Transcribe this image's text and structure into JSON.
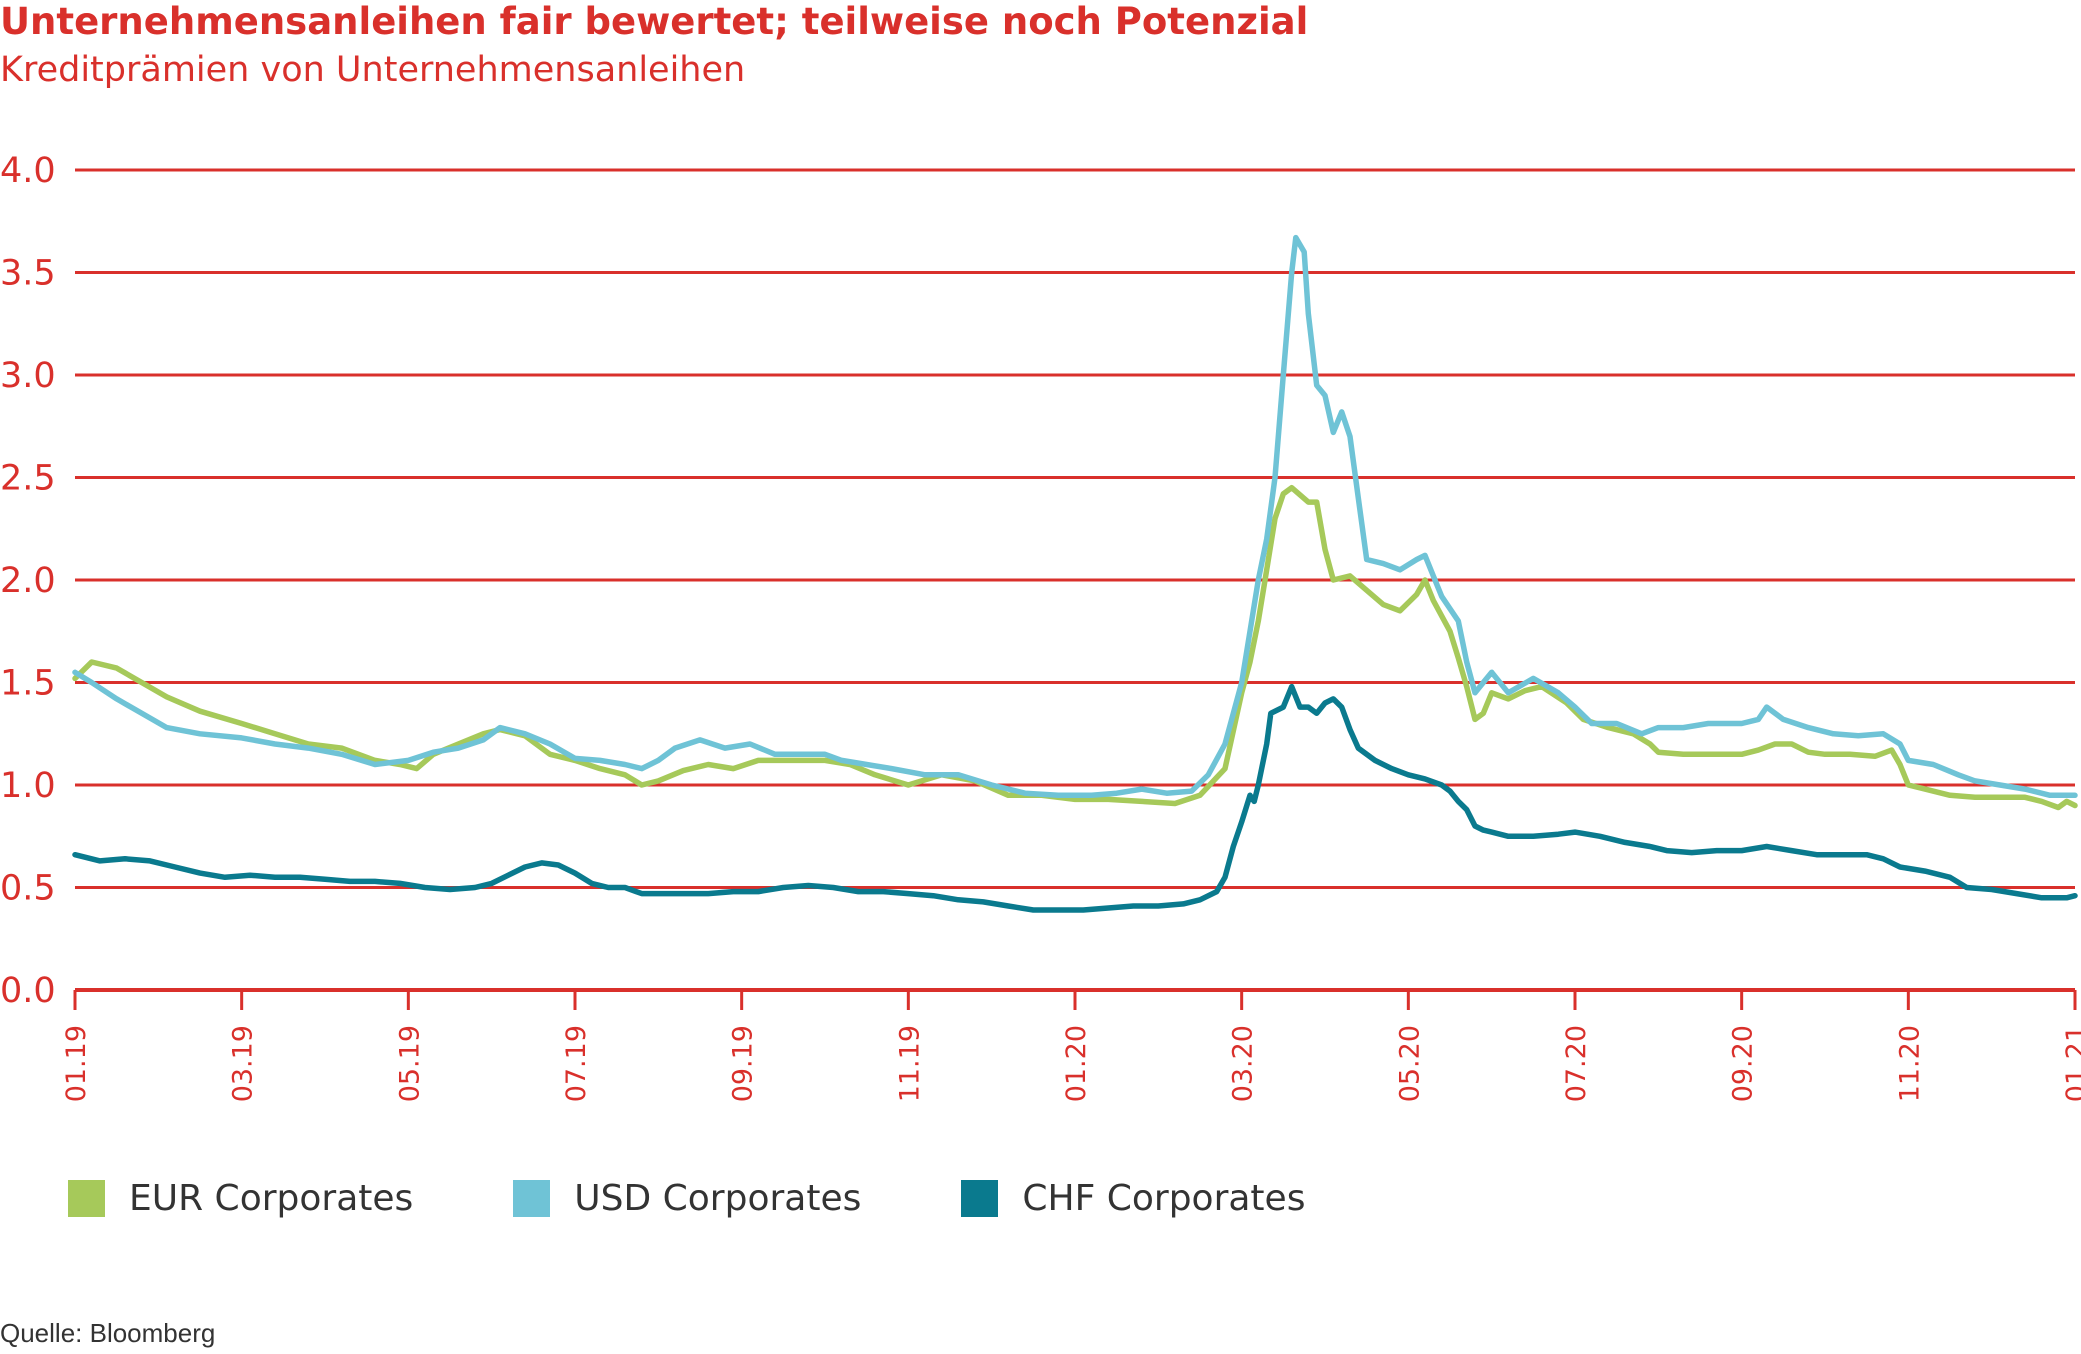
{
  "chart_data": {
    "type": "line",
    "title": "Unternehmensanleihen fair bewertet; teilweise noch Potenzial",
    "subtitle": "Kreditprämien von Unternehmensanleihen",
    "source": "Quelle: Bloomberg",
    "ylim": [
      0,
      4
    ],
    "yticks": [
      "0.0",
      "0.5",
      "1.0",
      "1.5",
      "2.0",
      "2.5",
      "3.0",
      "3.5",
      "4.0"
    ],
    "xlim": [
      0,
      24
    ],
    "xticks": [
      {
        "x": 0,
        "label": "01.19"
      },
      {
        "x": 2,
        "label": "03.19"
      },
      {
        "x": 4,
        "label": "05.19"
      },
      {
        "x": 6,
        "label": "07.19"
      },
      {
        "x": 8,
        "label": "09.19"
      },
      {
        "x": 10,
        "label": "11.19"
      },
      {
        "x": 12,
        "label": "01.20"
      },
      {
        "x": 14,
        "label": "03.20"
      },
      {
        "x": 16,
        "label": "05.20"
      },
      {
        "x": 18,
        "label": "07.20"
      },
      {
        "x": 20,
        "label": "09.20"
      },
      {
        "x": 22,
        "label": "11.20"
      },
      {
        "x": 24,
        "label": "01.21"
      }
    ],
    "grid": true,
    "legend_position": "bottom-left",
    "colors": {
      "grid": "#d9302b",
      "axis": "#d9302b"
    },
    "series": [
      {
        "name": "EUR Corporates",
        "color": "#a6c95a",
        "points": [
          [
            0,
            1.52
          ],
          [
            0.2,
            1.6
          ],
          [
            0.5,
            1.57
          ],
          [
            0.8,
            1.5
          ],
          [
            1.1,
            1.43
          ],
          [
            1.5,
            1.36
          ],
          [
            2,
            1.3
          ],
          [
            2.4,
            1.25
          ],
          [
            2.8,
            1.2
          ],
          [
            3.2,
            1.18
          ],
          [
            3.6,
            1.12
          ],
          [
            3.9,
            1.1
          ],
          [
            4.1,
            1.08
          ],
          [
            4.3,
            1.15
          ],
          [
            4.6,
            1.2
          ],
          [
            4.9,
            1.25
          ],
          [
            5.1,
            1.27
          ],
          [
            5.4,
            1.24
          ],
          [
            5.7,
            1.15
          ],
          [
            6.0,
            1.12
          ],
          [
            6.3,
            1.08
          ],
          [
            6.6,
            1.05
          ],
          [
            6.8,
            1.0
          ],
          [
            7.0,
            1.02
          ],
          [
            7.3,
            1.07
          ],
          [
            7.6,
            1.1
          ],
          [
            7.9,
            1.08
          ],
          [
            8.2,
            1.12
          ],
          [
            8.6,
            1.12
          ],
          [
            9.0,
            1.12
          ],
          [
            9.3,
            1.1
          ],
          [
            9.6,
            1.05
          ],
          [
            10.0,
            1.0
          ],
          [
            10.4,
            1.05
          ],
          [
            10.8,
            1.02
          ],
          [
            11.2,
            0.95
          ],
          [
            11.6,
            0.95
          ],
          [
            12.0,
            0.93
          ],
          [
            12.4,
            0.93
          ],
          [
            12.8,
            0.92
          ],
          [
            13.2,
            0.91
          ],
          [
            13.5,
            0.95
          ],
          [
            13.8,
            1.08
          ],
          [
            14.0,
            1.45
          ],
          [
            14.1,
            1.6
          ],
          [
            14.2,
            1.8
          ],
          [
            14.3,
            2.05
          ],
          [
            14.4,
            2.3
          ],
          [
            14.5,
            2.42
          ],
          [
            14.6,
            2.45
          ],
          [
            14.8,
            2.38
          ],
          [
            14.9,
            2.38
          ],
          [
            15.0,
            2.15
          ],
          [
            15.1,
            2.0
          ],
          [
            15.3,
            2.02
          ],
          [
            15.5,
            1.95
          ],
          [
            15.7,
            1.88
          ],
          [
            15.9,
            1.85
          ],
          [
            16.1,
            1.93
          ],
          [
            16.2,
            2.0
          ],
          [
            16.3,
            1.9
          ],
          [
            16.5,
            1.75
          ],
          [
            16.6,
            1.62
          ],
          [
            16.7,
            1.48
          ],
          [
            16.8,
            1.32
          ],
          [
            16.9,
            1.35
          ],
          [
            17.0,
            1.45
          ],
          [
            17.2,
            1.42
          ],
          [
            17.4,
            1.46
          ],
          [
            17.6,
            1.48
          ],
          [
            17.9,
            1.4
          ],
          [
            18.1,
            1.32
          ],
          [
            18.4,
            1.28
          ],
          [
            18.7,
            1.25
          ],
          [
            18.9,
            1.2
          ],
          [
            19.0,
            1.16
          ],
          [
            19.3,
            1.15
          ],
          [
            19.7,
            1.15
          ],
          [
            20.0,
            1.15
          ],
          [
            20.2,
            1.17
          ],
          [
            20.4,
            1.2
          ],
          [
            20.6,
            1.2
          ],
          [
            20.8,
            1.16
          ],
          [
            21.0,
            1.15
          ],
          [
            21.3,
            1.15
          ],
          [
            21.6,
            1.14
          ],
          [
            21.8,
            1.17
          ],
          [
            21.9,
            1.1
          ],
          [
            22.0,
            1.0
          ],
          [
            22.2,
            0.98
          ],
          [
            22.5,
            0.95
          ],
          [
            22.8,
            0.94
          ],
          [
            23.1,
            0.94
          ],
          [
            23.4,
            0.94
          ],
          [
            23.6,
            0.92
          ],
          [
            23.8,
            0.89
          ],
          [
            23.9,
            0.92
          ],
          [
            24.0,
            0.9
          ]
        ]
      },
      {
        "name": "USD Corporates",
        "color": "#6fc3d6",
        "points": [
          [
            0,
            1.55
          ],
          [
            0.2,
            1.5
          ],
          [
            0.5,
            1.42
          ],
          [
            0.8,
            1.35
          ],
          [
            1.1,
            1.28
          ],
          [
            1.5,
            1.25
          ],
          [
            2,
            1.23
          ],
          [
            2.4,
            1.2
          ],
          [
            2.8,
            1.18
          ],
          [
            3.2,
            1.15
          ],
          [
            3.6,
            1.1
          ],
          [
            4.0,
            1.12
          ],
          [
            4.3,
            1.16
          ],
          [
            4.6,
            1.18
          ],
          [
            4.9,
            1.22
          ],
          [
            5.1,
            1.28
          ],
          [
            5.4,
            1.25
          ],
          [
            5.7,
            1.2
          ],
          [
            6.0,
            1.13
          ],
          [
            6.3,
            1.12
          ],
          [
            6.6,
            1.1
          ],
          [
            6.8,
            1.08
          ],
          [
            7.0,
            1.12
          ],
          [
            7.2,
            1.18
          ],
          [
            7.5,
            1.22
          ],
          [
            7.8,
            1.18
          ],
          [
            8.1,
            1.2
          ],
          [
            8.4,
            1.15
          ],
          [
            8.7,
            1.15
          ],
          [
            9.0,
            1.15
          ],
          [
            9.2,
            1.12
          ],
          [
            9.5,
            1.1
          ],
          [
            9.8,
            1.08
          ],
          [
            10.2,
            1.05
          ],
          [
            10.6,
            1.05
          ],
          [
            11.0,
            1.0
          ],
          [
            11.4,
            0.96
          ],
          [
            11.8,
            0.95
          ],
          [
            12.2,
            0.95
          ],
          [
            12.5,
            0.96
          ],
          [
            12.8,
            0.98
          ],
          [
            13.1,
            0.96
          ],
          [
            13.4,
            0.97
          ],
          [
            13.6,
            1.05
          ],
          [
            13.8,
            1.2
          ],
          [
            14.0,
            1.5
          ],
          [
            14.1,
            1.75
          ],
          [
            14.2,
            2.0
          ],
          [
            14.3,
            2.2
          ],
          [
            14.4,
            2.5
          ],
          [
            14.5,
            3.0
          ],
          [
            14.6,
            3.5
          ],
          [
            14.65,
            3.67
          ],
          [
            14.75,
            3.6
          ],
          [
            14.8,
            3.3
          ],
          [
            14.9,
            2.95
          ],
          [
            15.0,
            2.9
          ],
          [
            15.1,
            2.72
          ],
          [
            15.2,
            2.82
          ],
          [
            15.3,
            2.7
          ],
          [
            15.4,
            2.4
          ],
          [
            15.5,
            2.1
          ],
          [
            15.7,
            2.08
          ],
          [
            15.9,
            2.05
          ],
          [
            16.1,
            2.1
          ],
          [
            16.2,
            2.12
          ],
          [
            16.3,
            2.02
          ],
          [
            16.4,
            1.92
          ],
          [
            16.6,
            1.8
          ],
          [
            16.7,
            1.6
          ],
          [
            16.8,
            1.45
          ],
          [
            16.9,
            1.5
          ],
          [
            17.0,
            1.55
          ],
          [
            17.2,
            1.45
          ],
          [
            17.5,
            1.52
          ],
          [
            17.8,
            1.45
          ],
          [
            18.0,
            1.38
          ],
          [
            18.2,
            1.3
          ],
          [
            18.5,
            1.3
          ],
          [
            18.8,
            1.25
          ],
          [
            19.0,
            1.28
          ],
          [
            19.3,
            1.28
          ],
          [
            19.6,
            1.3
          ],
          [
            20.0,
            1.3
          ],
          [
            20.2,
            1.32
          ],
          [
            20.3,
            1.38
          ],
          [
            20.5,
            1.32
          ],
          [
            20.8,
            1.28
          ],
          [
            21.1,
            1.25
          ],
          [
            21.4,
            1.24
          ],
          [
            21.7,
            1.25
          ],
          [
            21.9,
            1.2
          ],
          [
            22.0,
            1.12
          ],
          [
            22.3,
            1.1
          ],
          [
            22.6,
            1.05
          ],
          [
            22.8,
            1.02
          ],
          [
            23.1,
            1.0
          ],
          [
            23.4,
            0.98
          ],
          [
            23.7,
            0.95
          ],
          [
            24.0,
            0.95
          ]
        ]
      },
      {
        "name": "CHF Corporates",
        "color": "#0a7a8e",
        "points": [
          [
            0,
            0.66
          ],
          [
            0.3,
            0.63
          ],
          [
            0.6,
            0.64
          ],
          [
            0.9,
            0.63
          ],
          [
            1.2,
            0.6
          ],
          [
            1.5,
            0.57
          ],
          [
            1.8,
            0.55
          ],
          [
            2.1,
            0.56
          ],
          [
            2.4,
            0.55
          ],
          [
            2.7,
            0.55
          ],
          [
            3.0,
            0.54
          ],
          [
            3.3,
            0.53
          ],
          [
            3.6,
            0.53
          ],
          [
            3.9,
            0.52
          ],
          [
            4.2,
            0.5
          ],
          [
            4.5,
            0.49
          ],
          [
            4.8,
            0.5
          ],
          [
            5.0,
            0.52
          ],
          [
            5.2,
            0.56
          ],
          [
            5.4,
            0.6
          ],
          [
            5.6,
            0.62
          ],
          [
            5.8,
            0.61
          ],
          [
            6.0,
            0.57
          ],
          [
            6.2,
            0.52
          ],
          [
            6.4,
            0.5
          ],
          [
            6.6,
            0.5
          ],
          [
            6.8,
            0.47
          ],
          [
            7.0,
            0.47
          ],
          [
            7.3,
            0.47
          ],
          [
            7.6,
            0.47
          ],
          [
            7.9,
            0.48
          ],
          [
            8.2,
            0.48
          ],
          [
            8.5,
            0.5
          ],
          [
            8.8,
            0.51
          ],
          [
            9.1,
            0.5
          ],
          [
            9.4,
            0.48
          ],
          [
            9.7,
            0.48
          ],
          [
            10.0,
            0.47
          ],
          [
            10.3,
            0.46
          ],
          [
            10.6,
            0.44
          ],
          [
            10.9,
            0.43
          ],
          [
            11.2,
            0.41
          ],
          [
            11.5,
            0.39
          ],
          [
            11.8,
            0.39
          ],
          [
            12.1,
            0.39
          ],
          [
            12.4,
            0.4
          ],
          [
            12.7,
            0.41
          ],
          [
            13.0,
            0.41
          ],
          [
            13.3,
            0.42
          ],
          [
            13.5,
            0.44
          ],
          [
            13.7,
            0.48
          ],
          [
            13.8,
            0.55
          ],
          [
            13.9,
            0.7
          ],
          [
            14.0,
            0.82
          ],
          [
            14.1,
            0.95
          ],
          [
            14.15,
            0.92
          ],
          [
            14.2,
            1.0
          ],
          [
            14.3,
            1.2
          ],
          [
            14.35,
            1.35
          ],
          [
            14.5,
            1.38
          ],
          [
            14.6,
            1.48
          ],
          [
            14.7,
            1.38
          ],
          [
            14.8,
            1.38
          ],
          [
            14.9,
            1.35
          ],
          [
            15.0,
            1.4
          ],
          [
            15.1,
            1.42
          ],
          [
            15.2,
            1.38
          ],
          [
            15.3,
            1.27
          ],
          [
            15.4,
            1.18
          ],
          [
            15.6,
            1.12
          ],
          [
            15.8,
            1.08
          ],
          [
            16.0,
            1.05
          ],
          [
            16.2,
            1.03
          ],
          [
            16.4,
            1.0
          ],
          [
            16.5,
            0.97
          ],
          [
            16.6,
            0.92
          ],
          [
            16.7,
            0.88
          ],
          [
            16.8,
            0.8
          ],
          [
            16.9,
            0.78
          ],
          [
            17.0,
            0.77
          ],
          [
            17.2,
            0.75
          ],
          [
            17.5,
            0.75
          ],
          [
            17.8,
            0.76
          ],
          [
            18.0,
            0.77
          ],
          [
            18.3,
            0.75
          ],
          [
            18.6,
            0.72
          ],
          [
            18.9,
            0.7
          ],
          [
            19.1,
            0.68
          ],
          [
            19.4,
            0.67
          ],
          [
            19.7,
            0.68
          ],
          [
            20.0,
            0.68
          ],
          [
            20.3,
            0.7
          ],
          [
            20.6,
            0.68
          ],
          [
            20.9,
            0.66
          ],
          [
            21.2,
            0.66
          ],
          [
            21.5,
            0.66
          ],
          [
            21.7,
            0.64
          ],
          [
            21.9,
            0.6
          ],
          [
            22.2,
            0.58
          ],
          [
            22.5,
            0.55
          ],
          [
            22.7,
            0.5
          ],
          [
            23.0,
            0.49
          ],
          [
            23.3,
            0.47
          ],
          [
            23.6,
            0.45
          ],
          [
            23.9,
            0.45
          ],
          [
            24.0,
            0.46
          ]
        ]
      }
    ]
  }
}
